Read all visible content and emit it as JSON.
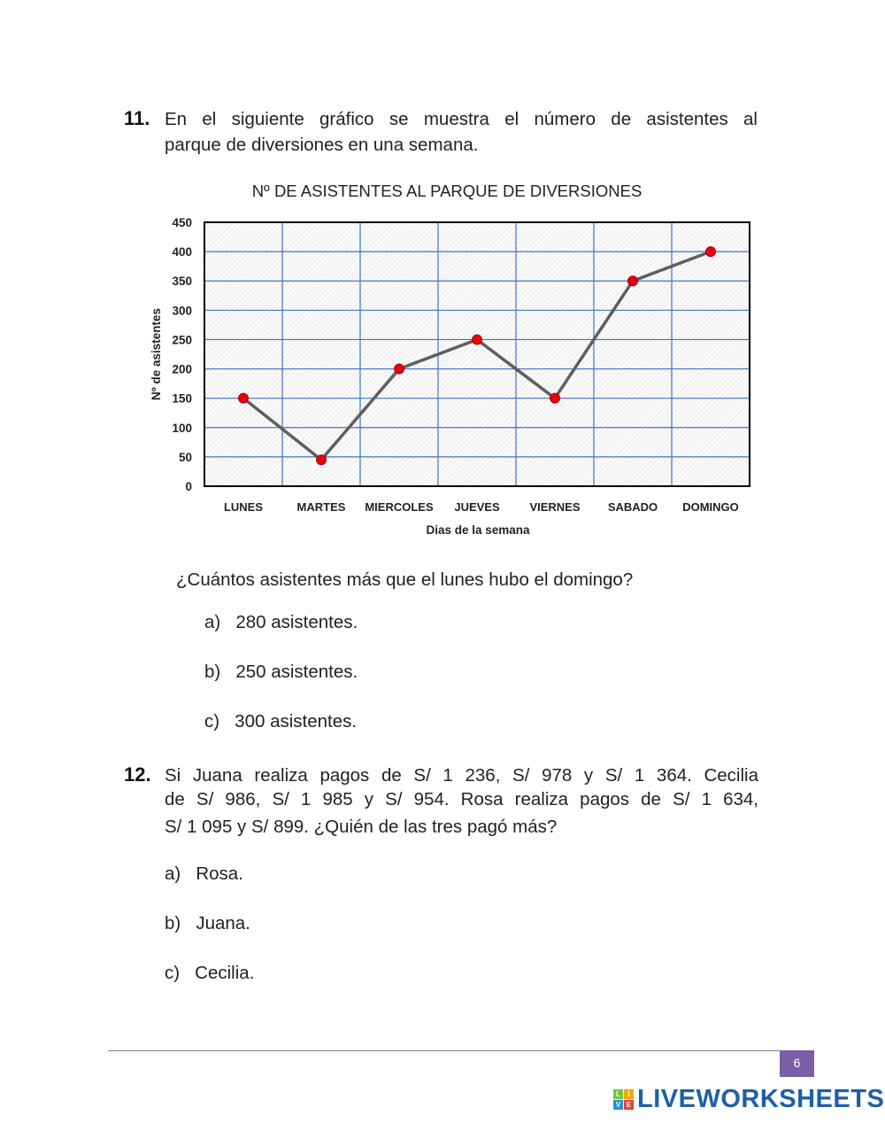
{
  "q11": {
    "number": "11.",
    "line1": "En el siguiente gráfico se muestra el número de asistentes al",
    "line2": "parque de diversiones en una semana.",
    "question": "¿Cuántos asistentes más que el lunes hubo el domingo?",
    "options": [
      {
        "letter": "a)",
        "text": "280 asistentes."
      },
      {
        "letter": "b)",
        "text": "250 asistentes."
      },
      {
        "letter": "c)",
        "text": "300 asistentes."
      }
    ]
  },
  "chart_data": {
    "type": "line",
    "title": "Nº DE ASISTENTES AL PARQUE DE DIVERSIONES",
    "xlabel": "Dias de la semana",
    "ylabel": "Nº de asistentes",
    "categories": [
      "LUNES",
      "MARTES",
      "MIERCOLES",
      "JUEVES",
      "VIERNES",
      "SABADO",
      "DOMINGO"
    ],
    "values": [
      150,
      45,
      200,
      250,
      150,
      350,
      400
    ],
    "ylim": [
      0,
      450
    ],
    "yticks": [
      0,
      50,
      100,
      150,
      200,
      250,
      300,
      350,
      400,
      450
    ],
    "grid": true,
    "colors": {
      "line": "#5f5f5f",
      "marker": "#e60012",
      "grid": "#4472c4"
    }
  },
  "q12": {
    "number": "12.",
    "line1": "Si Juana realiza pagos de S/ 1 236, S/ 978 y S/ 1 364. Cecilia",
    "line2": "de S/ 986, S/ 1 985 y S/ 954. Rosa realiza pagos de S/ 1 634,",
    "line3": "S/ 1 095 y S/ 899.  ¿Quién de las tres pagó más?",
    "options": [
      {
        "letter": "a)",
        "text": "Rosa."
      },
      {
        "letter": "b)",
        "text": "Juana."
      },
      {
        "letter": "c)",
        "text": "Cecilia."
      }
    ]
  },
  "footer": {
    "page_number": "6",
    "logo_letters": [
      "L",
      "I",
      "V",
      "E"
    ],
    "logo_text": "LIVEWORKSHEETS",
    "colors": {
      "line": "#8a6fa8",
      "page_box": "#7b5ea7",
      "logo": "#1e5fa8"
    }
  }
}
